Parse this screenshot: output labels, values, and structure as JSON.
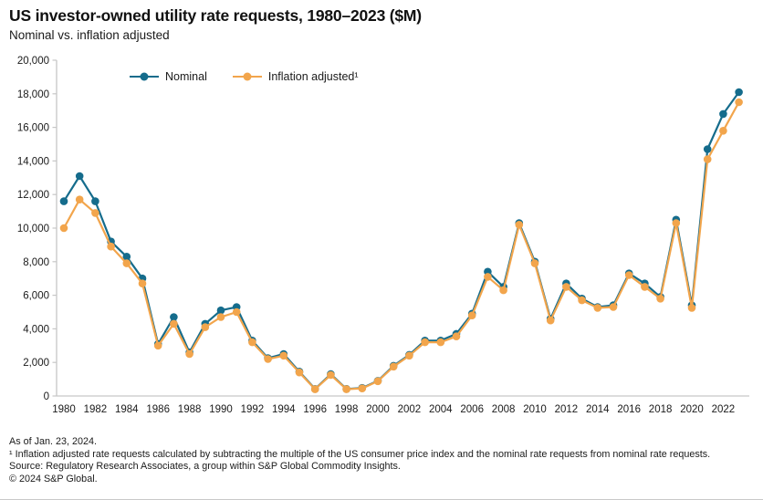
{
  "header": {
    "title": "US investor-owned utility rate requests, 1980–2023  ($M)",
    "subtitle": "Nominal vs. inflation adjusted"
  },
  "legend": {
    "items": [
      {
        "label": "Nominal",
        "color": "#156c8c"
      },
      {
        "label": "Inflation adjusted¹",
        "color": "#f2a54c"
      }
    ]
  },
  "footer": {
    "as_of": "As of Jan. 23, 2024.",
    "footnote": "¹ Inflation adjusted rate requests calculated by subtracting the multiple of the US consumer price index and the nominal rate requests from nominal rate requests.",
    "source": "Source: Regulatory Research Associates, a group within S&P Global Commodity Insights.",
    "copyright": "© 2024 S&P Global."
  },
  "chart_data": {
    "type": "line",
    "title": "US investor-owned utility rate requests, 1980–2023 ($M)",
    "xlabel": "",
    "ylabel": "",
    "ylim": [
      0,
      20000
    ],
    "y_ticks": [
      0,
      2000,
      4000,
      6000,
      8000,
      10000,
      12000,
      14000,
      16000,
      18000,
      20000
    ],
    "x_tick_labels": [
      "1980",
      "1982",
      "1984",
      "1986",
      "1988",
      "1990",
      "1992",
      "1994",
      "1996",
      "1998",
      "2000",
      "2002",
      "2004",
      "2006",
      "2008",
      "2010",
      "2012",
      "2014",
      "2016",
      "2018",
      "2020",
      "2022"
    ],
    "grid": false,
    "legend_position": "top",
    "x": [
      1980,
      1981,
      1982,
      1983,
      1984,
      1985,
      1986,
      1987,
      1988,
      1989,
      1990,
      1991,
      1992,
      1993,
      1994,
      1995,
      1996,
      1997,
      1998,
      1999,
      2000,
      2001,
      2002,
      2003,
      2004,
      2005,
      2006,
      2007,
      2008,
      2009,
      2010,
      2011,
      2012,
      2013,
      2014,
      2015,
      2016,
      2017,
      2018,
      2019,
      2020,
      2021,
      2022,
      2023
    ],
    "series": [
      {
        "name": "Nominal",
        "color": "#156c8c",
        "values": [
          11600,
          13100,
          11600,
          9200,
          8300,
          7000,
          3100,
          4700,
          2600,
          4300,
          5100,
          5300,
          3300,
          2250,
          2500,
          1450,
          420,
          1300,
          420,
          480,
          900,
          1800,
          2450,
          3300,
          3300,
          3700,
          4900,
          7400,
          6500,
          10300,
          8000,
          4600,
          6700,
          5800,
          5300,
          5400,
          7300,
          6700,
          5900,
          10500,
          5400,
          14700,
          16800,
          18100
        ]
      },
      {
        "name": "Inflation adjusted¹",
        "color": "#f2a54c",
        "values": [
          10000,
          11700,
          10900,
          8900,
          7900,
          6700,
          3000,
          4300,
          2500,
          4100,
          4700,
          5000,
          3200,
          2200,
          2400,
          1400,
          400,
          1250,
          400,
          450,
          880,
          1750,
          2400,
          3200,
          3200,
          3550,
          4800,
          7100,
          6300,
          10200,
          7900,
          4500,
          6500,
          5700,
          5250,
          5300,
          7200,
          6500,
          5800,
          10300,
          5250,
          14100,
          15800,
          17500
        ]
      }
    ]
  }
}
